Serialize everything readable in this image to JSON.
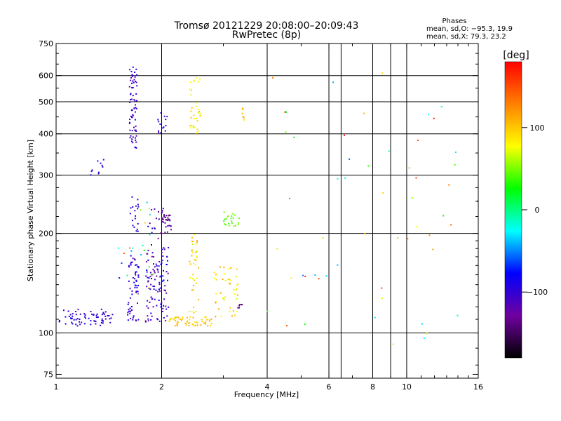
{
  "chart_data": {
    "type": "scatter",
    "title": "Tromsø 20121229 20:08:00–20:09:43",
    "subtitle": "RwPretec (8p)",
    "phase_stats": {
      "heading": "Phases",
      "line_o": "mean, sd,O: −95.3, 19.9",
      "line_x": "mean, sd,X:  79.3, 23.2"
    },
    "xlabel": "Frequency [MHz]",
    "ylabel": "Stationary phase Virtual Height [km]",
    "x_scale": "log",
    "y_scale": "log",
    "xlim": [
      1,
      16
    ],
    "ylim": [
      73,
      750
    ],
    "xticks": [
      {
        "value": 1,
        "label": "1"
      },
      {
        "value": 2,
        "label": "2"
      },
      {
        "value": 4,
        "label": "4"
      },
      {
        "value": 6,
        "label": "6"
      },
      {
        "value": 8,
        "label": "8"
      },
      {
        "value": 10,
        "label": "10"
      },
      {
        "value": 16,
        "label": "16"
      }
    ],
    "x_gridlines": [
      2,
      4,
      6,
      6.5,
      8,
      9,
      10
    ],
    "yticks": [
      {
        "value": 75,
        "label": "75"
      },
      {
        "value": 100,
        "label": "100"
      },
      {
        "value": 200,
        "label": "200"
      },
      {
        "value": 300,
        "label": "300"
      },
      {
        "value": 400,
        "label": "400"
      },
      {
        "value": 500,
        "label": "500"
      },
      {
        "value": 600,
        "label": "600"
      },
      {
        "value": 750,
        "label": "750"
      }
    ],
    "y_gridlines": [
      100,
      200,
      300,
      400,
      500,
      600
    ],
    "grid": true,
    "colorbar": {
      "label": "[deg]",
      "range": [
        -180,
        180
      ],
      "ticks": [
        {
          "value": 100,
          "label": "100"
        },
        {
          "value": 0,
          "label": "0"
        },
        {
          "value": -100,
          "label": "−100"
        }
      ],
      "stops": [
        "#ff0000",
        "#ff8000",
        "#ffff00",
        "#00ff00",
        "#00ffff",
        "#0000ff",
        "#7000a0",
        "#000000"
      ]
    },
    "clusters": [
      {
        "fmin": 1.02,
        "fmax": 1.45,
        "hmin": 105,
        "hmax": 118,
        "n": 70,
        "phase": -100,
        "spread": 12
      },
      {
        "fmin": 1.6,
        "fmax": 1.72,
        "hmin": 108,
        "hmax": 175,
        "n": 60,
        "phase": -100,
        "spread": 25
      },
      {
        "fmin": 1.62,
        "fmax": 1.7,
        "hmin": 360,
        "hmax": 640,
        "n": 70,
        "phase": -105,
        "spread": 15
      },
      {
        "fmin": 1.62,
        "fmax": 1.72,
        "hmin": 200,
        "hmax": 260,
        "n": 18,
        "phase": -100,
        "spread": 10
      },
      {
        "fmin": 1.8,
        "fmax": 2.1,
        "hmin": 108,
        "hmax": 185,
        "n": 110,
        "phase": -105,
        "spread": 30
      },
      {
        "fmin": 1.85,
        "fmax": 2.15,
        "hmin": 190,
        "hmax": 240,
        "n": 30,
        "phase": -115,
        "spread": 25
      },
      {
        "fmin": 2.0,
        "fmax": 2.12,
        "hmin": 215,
        "hmax": 228,
        "n": 20,
        "phase": -140,
        "spread": 8
      },
      {
        "fmin": 1.95,
        "fmax": 2.08,
        "hmin": 400,
        "hmax": 470,
        "n": 14,
        "phase": -100,
        "spread": 10
      },
      {
        "fmin": 2.1,
        "fmax": 2.8,
        "hmin": 105,
        "hmax": 112,
        "n": 60,
        "phase": 100,
        "spread": 15
      },
      {
        "fmin": 2.4,
        "fmax": 2.55,
        "hmin": 115,
        "hmax": 200,
        "n": 40,
        "phase": 90,
        "spread": 30
      },
      {
        "fmin": 2.4,
        "fmax": 2.6,
        "hmin": 400,
        "hmax": 600,
        "n": 35,
        "phase": 85,
        "spread": 20
      },
      {
        "fmin": 2.8,
        "fmax": 3.3,
        "hmin": 112,
        "hmax": 160,
        "n": 45,
        "phase": 95,
        "spread": 30
      },
      {
        "fmin": 3.0,
        "fmax": 3.35,
        "hmin": 210,
        "hmax": 232,
        "n": 22,
        "phase": 45,
        "spread": 10
      },
      {
        "fmin": 3.3,
        "fmax": 3.4,
        "hmin": 118,
        "hmax": 122,
        "n": 6,
        "phase": -140,
        "spread": 5
      },
      {
        "fmin": 3.35,
        "fmax": 3.45,
        "hmin": 440,
        "hmax": 480,
        "n": 8,
        "phase": 100,
        "spread": 20
      },
      {
        "fmin": 1.25,
        "fmax": 1.38,
        "hmin": 295,
        "hmax": 345,
        "n": 10,
        "phase": -100,
        "spread": 10
      },
      {
        "fmin": 1.5,
        "fmax": 1.9,
        "hmin": 130,
        "hmax": 250,
        "n": 25,
        "phase": 20,
        "spread": 120
      },
      {
        "fmin": 4.0,
        "fmax": 16,
        "hmin": 90,
        "hmax": 620,
        "n": 55,
        "phase": 60,
        "spread": 120
      }
    ]
  }
}
